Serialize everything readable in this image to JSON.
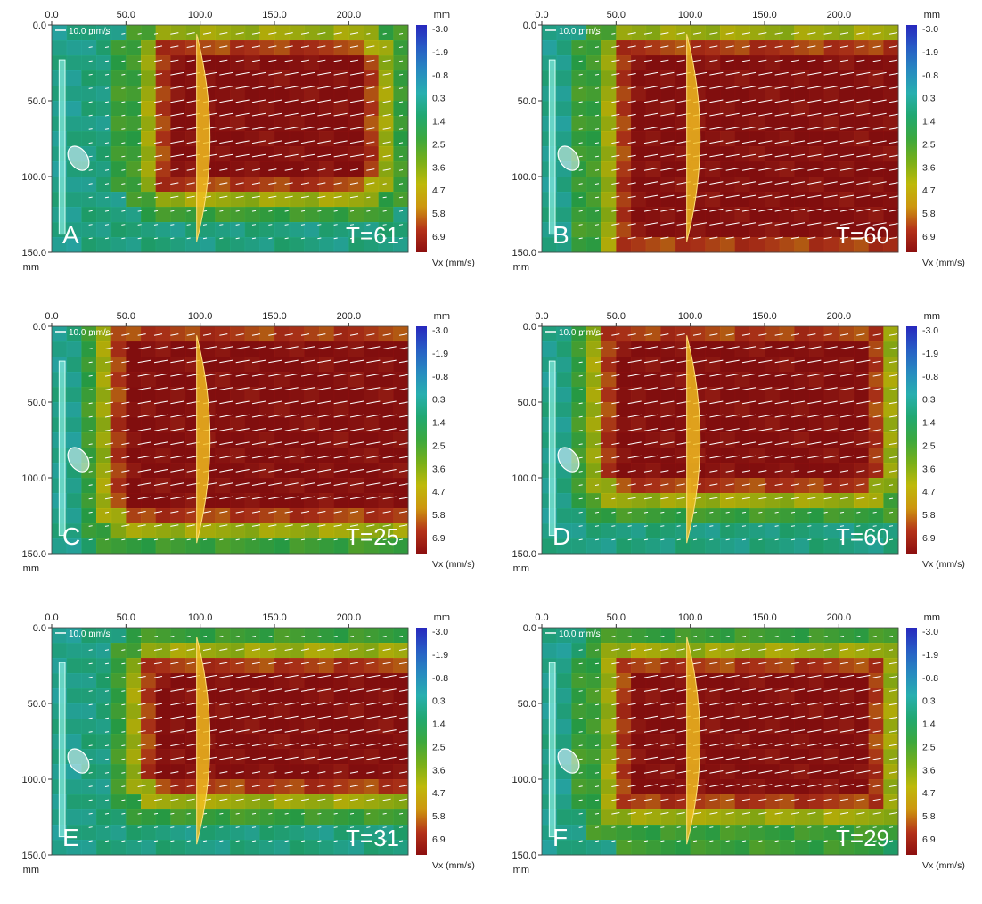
{
  "colors": {
    "flow_high": "#8b1010",
    "flow_mid": "#b9b80c",
    "flow_low": "#1aa54a",
    "flow_neg": "#1f3d9a",
    "cylinder": "#f2c020",
    "arrows": "#ffffff",
    "background": "#0a0a0a"
  },
  "chart_data": [
    {
      "type": "heatmap",
      "panel_label": "A",
      "time_label": "T=61",
      "scale_label": "10.0 mm/s",
      "x_unit": "mm",
      "y_unit": "mm",
      "x_ticks": [
        "0.0",
        "50.0",
        "100.0",
        "150.0",
        "200.0"
      ],
      "y_ticks": [
        "0.0",
        "50.0",
        "100.0",
        "150.0"
      ],
      "colorbar_ticks": [
        "-3.0",
        "-1.9",
        "-0.8",
        "0.3",
        "1.4",
        "2.5",
        "3.6",
        "4.7",
        "5.8",
        "6.9"
      ],
      "colorbar_label": "Vx (mm/s)",
      "xlim": [
        0,
        240
      ],
      "ylim": [
        0,
        150
      ],
      "vmin": -3.0,
      "vmax": 6.9,
      "core": {
        "x0": 80,
        "x1": 205,
        "y0": 25,
        "y1": 95
      }
    },
    {
      "type": "heatmap",
      "panel_label": "B",
      "time_label": "T=60",
      "scale_label": "10.0 mm/s",
      "x_unit": "mm",
      "y_unit": "mm",
      "x_ticks": [
        "0.0",
        "50.0",
        "100.0",
        "150.0",
        "200.0"
      ],
      "y_ticks": [
        "0.0",
        "50.0",
        "100.0",
        "150.0"
      ],
      "colorbar_ticks": [
        "-3.0",
        "-1.9",
        "-0.8",
        "0.3",
        "1.4",
        "2.5",
        "3.6",
        "4.7",
        "5.8",
        "6.9"
      ],
      "colorbar_label": "Vx (mm/s)",
      "xlim": [
        0,
        240
      ],
      "ylim": [
        0,
        150
      ],
      "vmin": -3.0,
      "vmax": 6.9,
      "core": {
        "x0": 60,
        "x1": 240,
        "y0": 25,
        "y1": 135
      }
    },
    {
      "type": "heatmap",
      "panel_label": "C",
      "time_label": "T=25",
      "scale_label": "10.0 mm/s",
      "x_unit": "mm",
      "y_unit": "mm",
      "x_ticks": [
        "0.0",
        "50.0",
        "100.0",
        "150.0",
        "200.0"
      ],
      "y_ticks": [
        "0.0",
        "50.0",
        "100.0",
        "150.0"
      ],
      "colorbar_ticks": [
        "-3.0",
        "-1.9",
        "-0.8",
        "0.3",
        "1.4",
        "2.5",
        "3.6",
        "4.7",
        "5.8",
        "6.9"
      ],
      "colorbar_label": "Vx (mm/s)",
      "xlim": [
        0,
        240
      ],
      "ylim": [
        0,
        150
      ],
      "vmin": -3.0,
      "vmax": 6.9,
      "core": {
        "x0": 55,
        "x1": 240,
        "y0": 10,
        "y1": 115
      }
    },
    {
      "type": "heatmap",
      "panel_label": "D",
      "time_label": "T=60",
      "scale_label": "10.0 mm/s",
      "x_unit": "mm",
      "y_unit": "mm",
      "x_ticks": [
        "0.0",
        "50.0",
        "100.0",
        "150.0",
        "200.0"
      ],
      "y_ticks": [
        "0.0",
        "50.0",
        "100.0",
        "150.0"
      ],
      "colorbar_ticks": [
        "-3.0",
        "-1.9",
        "-0.8",
        "0.3",
        "1.4",
        "2.5",
        "3.6",
        "4.7",
        "5.8",
        "6.9"
      ],
      "colorbar_label": "Vx (mm/s)",
      "xlim": [
        0,
        240
      ],
      "ylim": [
        0,
        150
      ],
      "vmin": -3.0,
      "vmax": 6.9,
      "core": {
        "x0": 55,
        "x1": 215,
        "y0": 10,
        "y1": 95
      }
    },
    {
      "type": "heatmap",
      "panel_label": "E",
      "time_label": "T=31",
      "scale_label": "10.0 mm/s",
      "x_unit": "mm",
      "y_unit": "mm",
      "x_ticks": [
        "0.0",
        "50.0",
        "100.0",
        "150.0",
        "200.0"
      ],
      "y_ticks": [
        "0.0",
        "50.0",
        "100.0",
        "150.0"
      ],
      "colorbar_ticks": [
        "-3.0",
        "-1.9",
        "-0.8",
        "0.3",
        "1.4",
        "2.5",
        "3.6",
        "4.7",
        "5.8",
        "6.9"
      ],
      "colorbar_label": "Vx (mm/s)",
      "xlim": [
        0,
        240
      ],
      "ylim": [
        0,
        150
      ],
      "vmin": -3.0,
      "vmax": 6.9,
      "core": {
        "x0": 75,
        "x1": 240,
        "y0": 30,
        "y1": 95
      }
    },
    {
      "type": "heatmap",
      "panel_label": "F",
      "time_label": "T=29",
      "scale_label": "10.0 mm/s",
      "x_unit": "mm",
      "y_unit": "mm",
      "x_ticks": [
        "0.0",
        "50.0",
        "100.0",
        "150.0",
        "200.0"
      ],
      "y_ticks": [
        "0.0",
        "50.0",
        "100.0",
        "150.0"
      ],
      "colorbar_ticks": [
        "-3.0",
        "-1.9",
        "-0.8",
        "0.3",
        "1.4",
        "2.5",
        "3.6",
        "4.7",
        "5.8",
        "6.9"
      ],
      "colorbar_label": "Vx (mm/s)",
      "xlim": [
        0,
        240
      ],
      "ylim": [
        0,
        150
      ],
      "vmin": -3.0,
      "vmax": 6.9,
      "core": {
        "x0": 60,
        "x1": 220,
        "y0": 30,
        "y1": 110
      }
    }
  ]
}
